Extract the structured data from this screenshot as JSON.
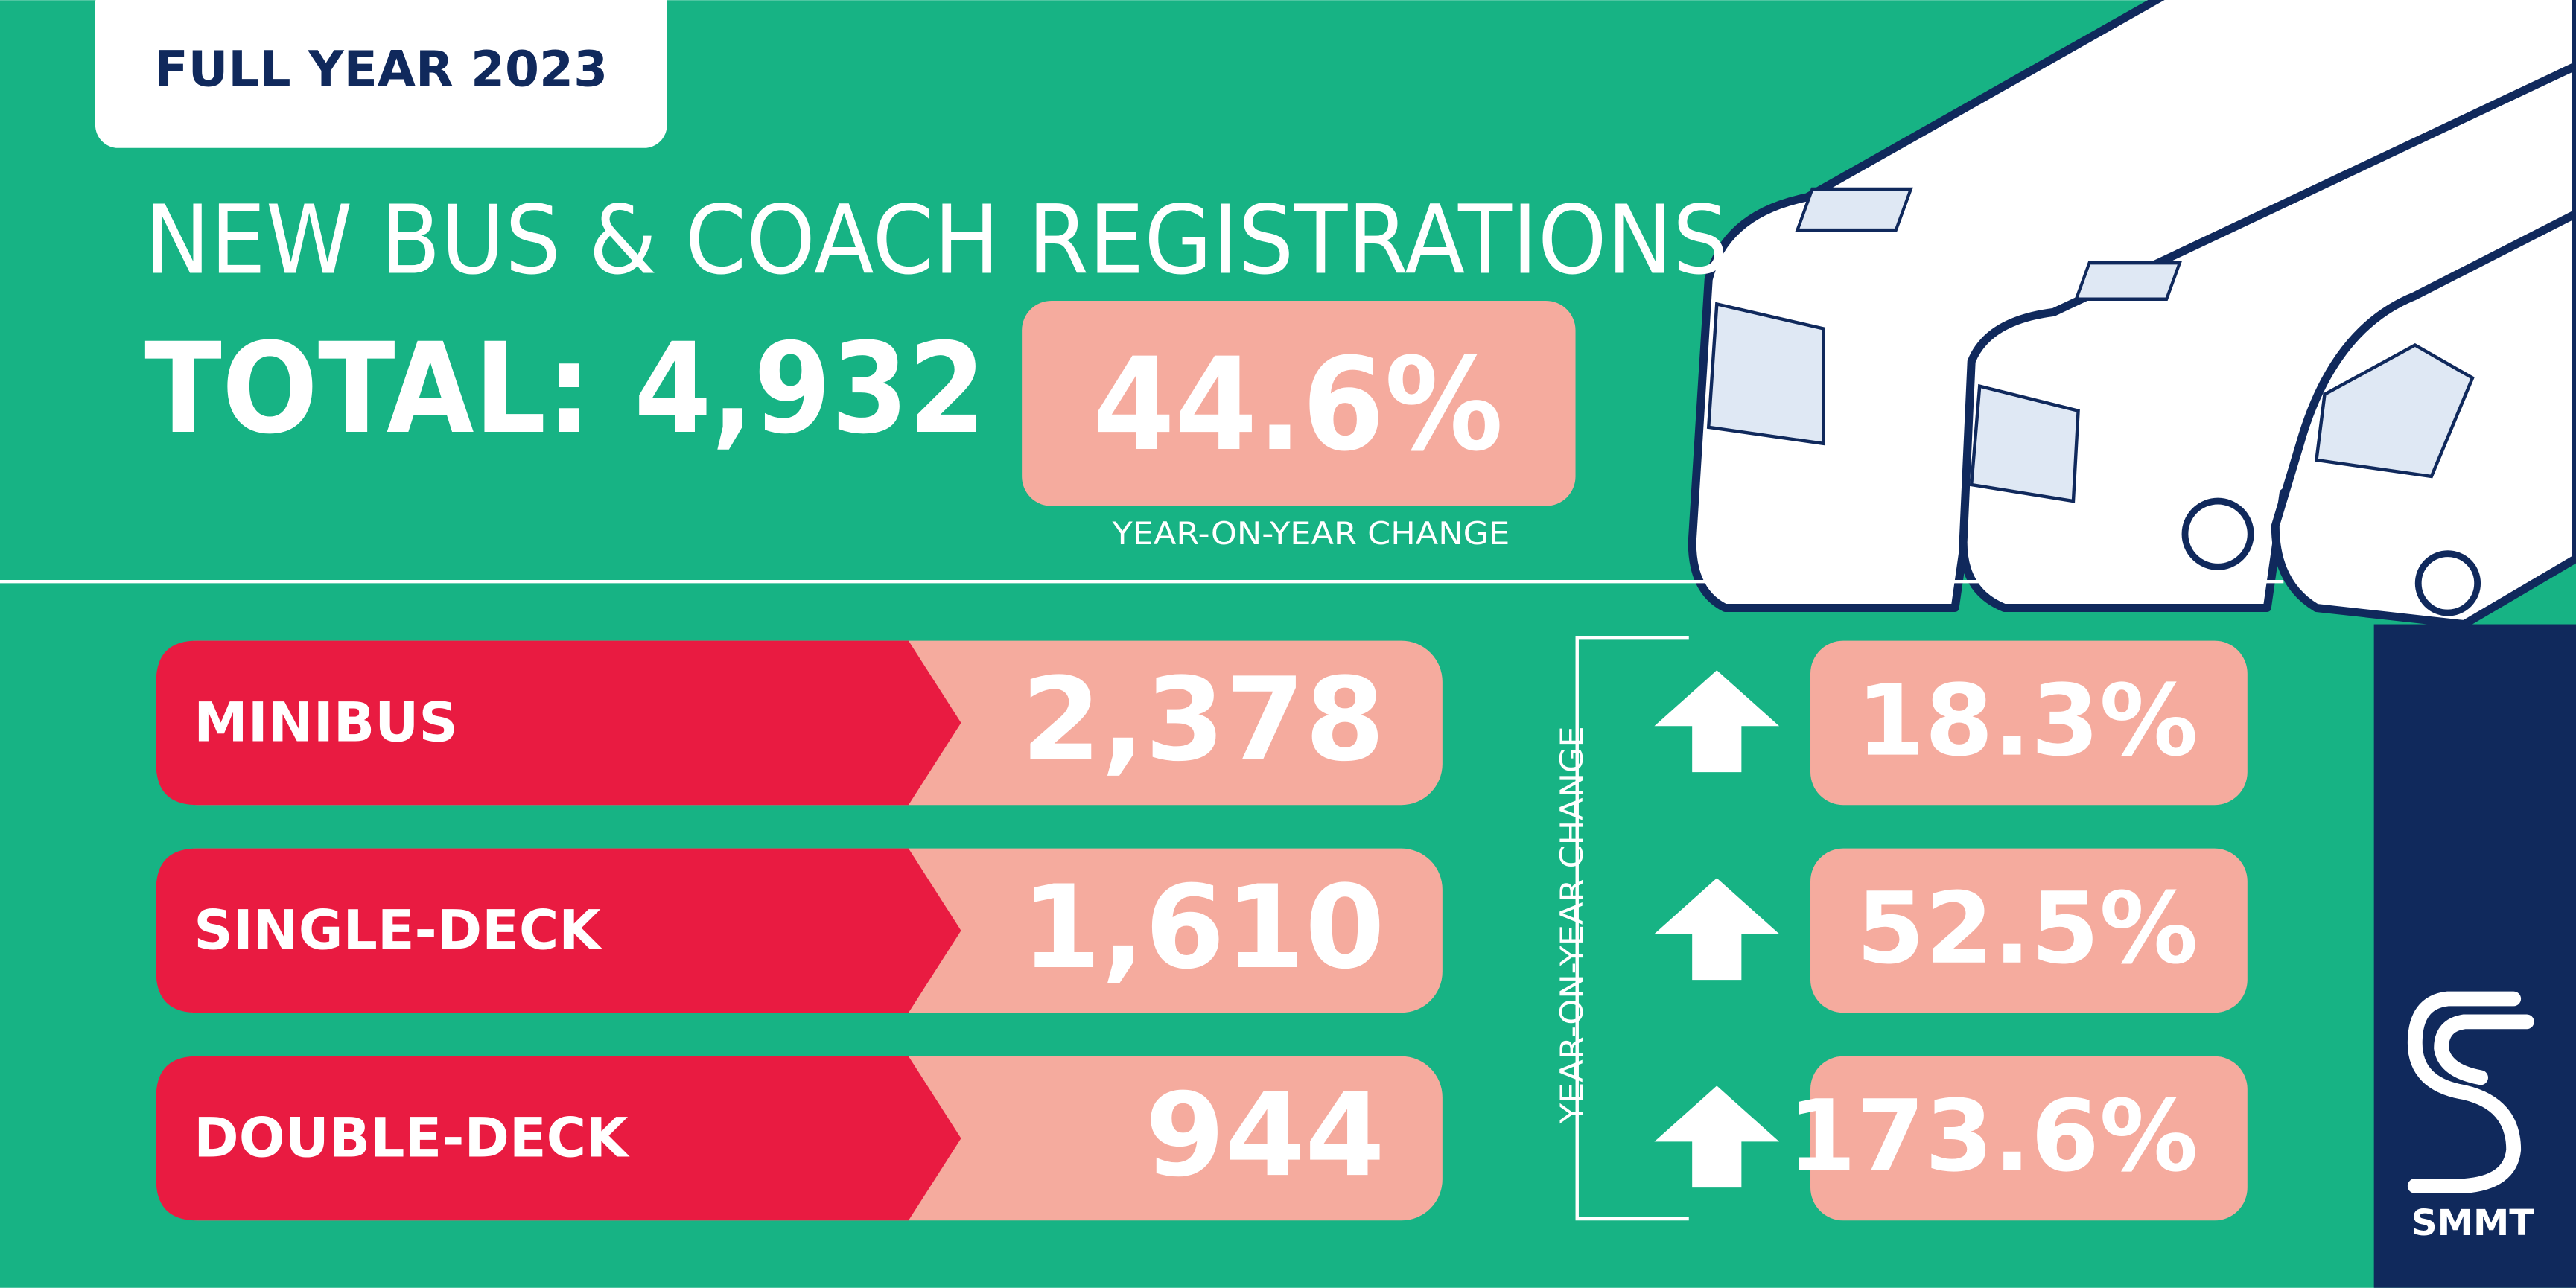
{
  "badge": "FULL YEAR 2023",
  "title": "NEW BUS & COACH REGISTRATIONS",
  "total": {
    "label": "TOTAL:",
    "value": "4,932",
    "change": "44.6%",
    "change_label": "YEAR-ON-YEAR CHANGE"
  },
  "rows": [
    {
      "name": "MINIBUS",
      "value": "2,378",
      "change": "18.3%"
    },
    {
      "name": "SINGLE-DECK",
      "value": "1,610",
      "change": "52.5%"
    },
    {
      "name": "DOUBLE-DECK",
      "value": "944",
      "change": "173.6%"
    }
  ],
  "side_label": "YEAR-ON-YEAR CHANGE",
  "logo": "SMMT"
}
